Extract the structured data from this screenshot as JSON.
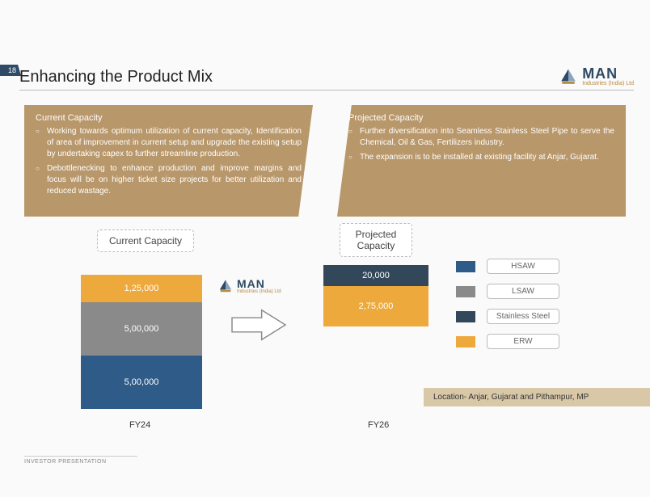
{
  "page_number": "18",
  "title": "Enhancing the Product Mix",
  "brand": {
    "name": "MAN",
    "sub": "Industries (India) Ltd"
  },
  "panels": {
    "left": {
      "title": "Current Capacity",
      "bullets": [
        "Working towards optimum utilization of current capacity, Identification of area of improvement in current setup and upgrade the existing setup by undertaking capex to further streamline production.",
        "Debottlenecking to enhance production and improve margins and focus will be on higher ticket size projects for better utilization and reduced wastage."
      ]
    },
    "right": {
      "title": "Projected Capacity",
      "bullets": [
        "Further diversification into Seamless Stainless Steel Pipe to serve the Chemical, Oil & Gas, Fertilizers industry.",
        "The expansion is to be installed at existing facility at Anjar, Gujarat."
      ]
    }
  },
  "capacity_labels": {
    "current": "Current Capacity",
    "projected": "Projected Capacity"
  },
  "charts": {
    "fy24": {
      "label": "FY24",
      "segments": [
        {
          "value": "1,25,000",
          "height": 34,
          "color": "#eda93c"
        },
        {
          "value": "5,00,000",
          "height": 66,
          "color": "#8a8a8a"
        },
        {
          "value": "5,00,000",
          "height": 66,
          "color": "#2e5b88"
        }
      ]
    },
    "fy26": {
      "label": "FY26",
      "segments": [
        {
          "value": "20,000",
          "height": 26,
          "color": "#33475b"
        },
        {
          "value": "2,75,000",
          "height": 50,
          "color": "#eda93c"
        }
      ]
    }
  },
  "legend": [
    {
      "color": "#2e5b88",
      "label": "HSAW"
    },
    {
      "color": "#8a8a8a",
      "label": "LSAW"
    },
    {
      "color": "#33475b",
      "label": "Stainless Steel"
    },
    {
      "color": "#eda93c",
      "label": "ERW"
    }
  ],
  "location": "Location- Anjar, Gujarat and Pithampur, MP",
  "footer": "INVESTOR PRESENTATION",
  "colors": {
    "panel_bg": "#b8976a",
    "loc_bg": "#d9c8a8",
    "title_rule": "#bbbbbb"
  }
}
